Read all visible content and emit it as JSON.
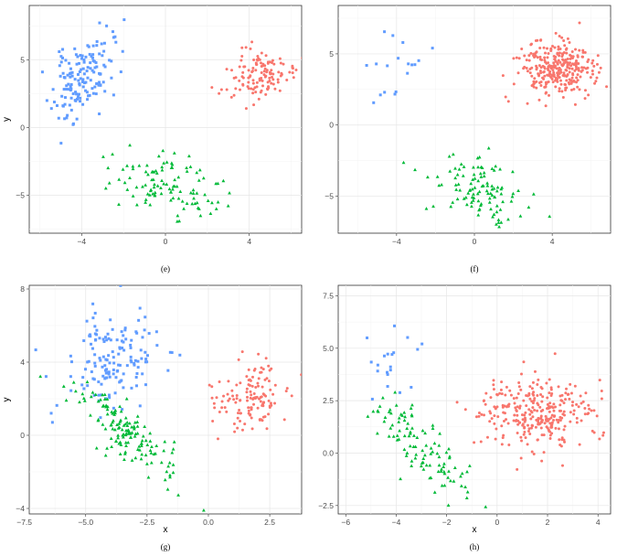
{
  "chart_data": [
    {
      "id": "e",
      "type": "scatter",
      "caption": "(e)",
      "xlabel": "",
      "ylabel": "y",
      "xlim": [
        -6.5,
        6.5
      ],
      "ylim": [
        -7.8,
        9.0
      ],
      "xticks": [
        -4,
        0,
        4
      ],
      "xtick_labels": [
        "−4",
        "0",
        "4"
      ],
      "yticks": [
        -5,
        0,
        5
      ],
      "yticks_labels": [
        "−5",
        "0",
        "5"
      ],
      "clusters": [
        {
          "color": "#619cff",
          "marker": "square",
          "n": 150,
          "cx": -4.0,
          "cy": 3.6,
          "sx": 0.7,
          "sy": 1.5,
          "rho": 0.45,
          "seed": 11
        },
        {
          "color": "#00ba38",
          "marker": "triangle",
          "n": 110,
          "cx": 0.0,
          "cy": -4.2,
          "sx": 1.3,
          "sy": 1.1,
          "rho": -0.35,
          "seed": 12
        },
        {
          "color": "#f8766d",
          "marker": "circle",
          "n": 130,
          "cx": 4.3,
          "cy": 3.9,
          "sx": 0.95,
          "sy": 0.9,
          "rho": 0.0,
          "seed": 13
        }
      ]
    },
    {
      "id": "f",
      "type": "scatter",
      "caption": "(f)",
      "xlabel": "",
      "ylabel": "",
      "xlim": [
        -7.0,
        7.0
      ],
      "ylim": [
        -7.6,
        8.4
      ],
      "xticks": [
        -4,
        0,
        4
      ],
      "xtick_labels": [
        "−4",
        "0",
        "4"
      ],
      "yticks": [
        -5,
        0,
        5
      ],
      "yticks_labels": [
        "−5",
        "0",
        "5"
      ],
      "clusters": [
        {
          "color": "#619cff",
          "marker": "square",
          "n": 18,
          "cx": -4.2,
          "cy": 3.8,
          "sx": 0.8,
          "sy": 1.6,
          "rho": 0.2,
          "seed": 21
        },
        {
          "color": "#00ba38",
          "marker": "triangle",
          "n": 110,
          "cx": 0.1,
          "cy": -4.4,
          "sx": 1.2,
          "sy": 1.1,
          "rho": -0.3,
          "seed": 22
        },
        {
          "color": "#f8766d",
          "marker": "circle",
          "n": 300,
          "cx": 4.2,
          "cy": 3.9,
          "sx": 0.95,
          "sy": 1.0,
          "rho": 0.0,
          "seed": 23
        }
      ]
    },
    {
      "id": "g",
      "type": "scatter",
      "caption": "(g)",
      "xlabel": "x",
      "ylabel": "y",
      "xlim": [
        -7.3,
        3.8
      ],
      "ylim": [
        -4.3,
        8.2
      ],
      "xticks": [
        -7.5,
        -5.0,
        -2.5,
        0.0,
        2.5
      ],
      "xtick_labels": [
        "−7.5",
        "−5.0",
        "−2.5",
        "0.0",
        "2.5"
      ],
      "yticks": [
        -4,
        0,
        4,
        8
      ],
      "yticks_labels": [
        "−4",
        "0",
        "4",
        "8"
      ],
      "clusters": [
        {
          "color": "#619cff",
          "marker": "square",
          "n": 150,
          "cx": -3.9,
          "cy": 4.1,
          "sx": 0.95,
          "sy": 1.3,
          "rho": 0.1,
          "seed": 31
        },
        {
          "color": "#00ba38",
          "marker": "triangle",
          "n": 150,
          "cx": -3.4,
          "cy": 0.3,
          "sx": 1.1,
          "sy": 1.3,
          "rho": -0.82,
          "seed": 32
        },
        {
          "color": "#f8766d",
          "marker": "circle",
          "n": 130,
          "cx": 1.7,
          "cy": 2.1,
          "sx": 0.75,
          "sy": 0.95,
          "rho": 0.05,
          "seed": 33
        }
      ]
    },
    {
      "id": "h",
      "type": "scatter",
      "caption": "(h)",
      "xlabel": "x",
      "ylabel": "",
      "xlim": [
        -6.3,
        4.5
      ],
      "ylim": [
        -2.9,
        8.0
      ],
      "xticks": [
        -6,
        -4,
        -2,
        0,
        2,
        4
      ],
      "xtick_labels": [
        "−6",
        "−4",
        "−2",
        "0",
        "2",
        "4"
      ],
      "yticks": [
        -2.5,
        0.0,
        2.5,
        5.0,
        7.5
      ],
      "yticks_labels": [
        "−2.5",
        "0.0",
        "2.5",
        "5.0",
        "7.5"
      ],
      "clusters": [
        {
          "color": "#619cff",
          "marker": "square",
          "n": 20,
          "cx": -4.0,
          "cy": 4.3,
          "sx": 0.6,
          "sy": 1.1,
          "rho": 0.2,
          "seed": 41
        },
        {
          "color": "#00ba38",
          "marker": "triangle",
          "n": 110,
          "cx": -3.1,
          "cy": 0.4,
          "sx": 1.1,
          "sy": 1.4,
          "rho": -0.85,
          "seed": 42
        },
        {
          "color": "#f8766d",
          "marker": "circle",
          "n": 300,
          "cx": 1.6,
          "cy": 1.8,
          "sx": 1.1,
          "sy": 0.9,
          "rho": 0.0,
          "seed": 43
        }
      ]
    }
  ]
}
